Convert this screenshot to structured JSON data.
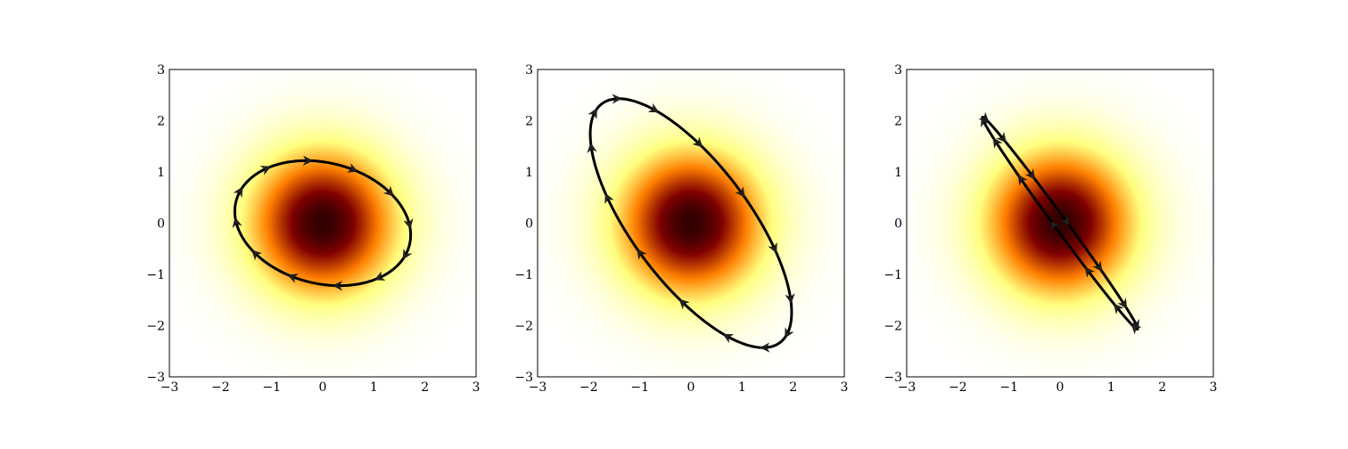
{
  "chart_data": [
    {
      "type": "heatmap",
      "colormap": "afmhot_r",
      "field": "2D Gaussian centered at (0,0), sigma ~1",
      "xlim": [
        -3,
        3
      ],
      "ylim": [
        -3,
        3
      ],
      "xticks": [
        "−3",
        "−2",
        "−1",
        "0",
        "1",
        "2",
        "3"
      ],
      "yticks": [
        "−3",
        "−2",
        "−1",
        "0",
        "1",
        "2",
        "3"
      ],
      "grid": false,
      "overlay": {
        "type": "ellipse",
        "center": [
          0,
          0
        ],
        "x_extent": 1.72,
        "y_extent": 1.22,
        "leftmost": [
          -1.72,
          0.23
        ],
        "top": [
          -0.38,
          1.22
        ],
        "direction": "clockwise",
        "arrow_count": 12,
        "color": "#000000"
      }
    },
    {
      "type": "heatmap",
      "colormap": "afmhot_r",
      "field": "2D Gaussian centered at (0,0), sigma ~1",
      "xlim": [
        -3,
        3
      ],
      "ylim": [
        -3,
        3
      ],
      "xticks": [
        "−3",
        "−2",
        "−1",
        "0",
        "1",
        "2",
        "3"
      ],
      "yticks": [
        "−3",
        "−2",
        "−1",
        "0",
        "1",
        "2",
        "3"
      ],
      "grid": false,
      "overlay": {
        "type": "ellipse",
        "center": [
          0,
          0
        ],
        "x_extent": 1.97,
        "y_extent": 2.43,
        "leftmost": [
          -1.97,
          1.74
        ],
        "top": [
          -1.48,
          2.42
        ],
        "direction": "clockwise",
        "arrow_count": 14,
        "color": "#000000"
      }
    },
    {
      "type": "heatmap",
      "colormap": "afmhot_r",
      "field": "2D Gaussian centered at (0,0), sigma ~1",
      "xlim": [
        -3,
        3
      ],
      "ylim": [
        -3,
        3
      ],
      "xticks": [
        "−3",
        "−2",
        "−1",
        "0",
        "1",
        "2",
        "3"
      ],
      "yticks": [
        "−3",
        "−2",
        "−1",
        "0",
        "1",
        "2",
        "3"
      ],
      "grid": false,
      "overlay": {
        "type": "ellipse",
        "center": [
          0,
          0
        ],
        "x_extent": 1.52,
        "y_extent": 2.07,
        "leftmost": [
          -1.5,
          2.06
        ],
        "top": [
          -1.5,
          2.06
        ],
        "direction": "clockwise",
        "arrow_count": 14,
        "color": "#000000"
      }
    }
  ]
}
